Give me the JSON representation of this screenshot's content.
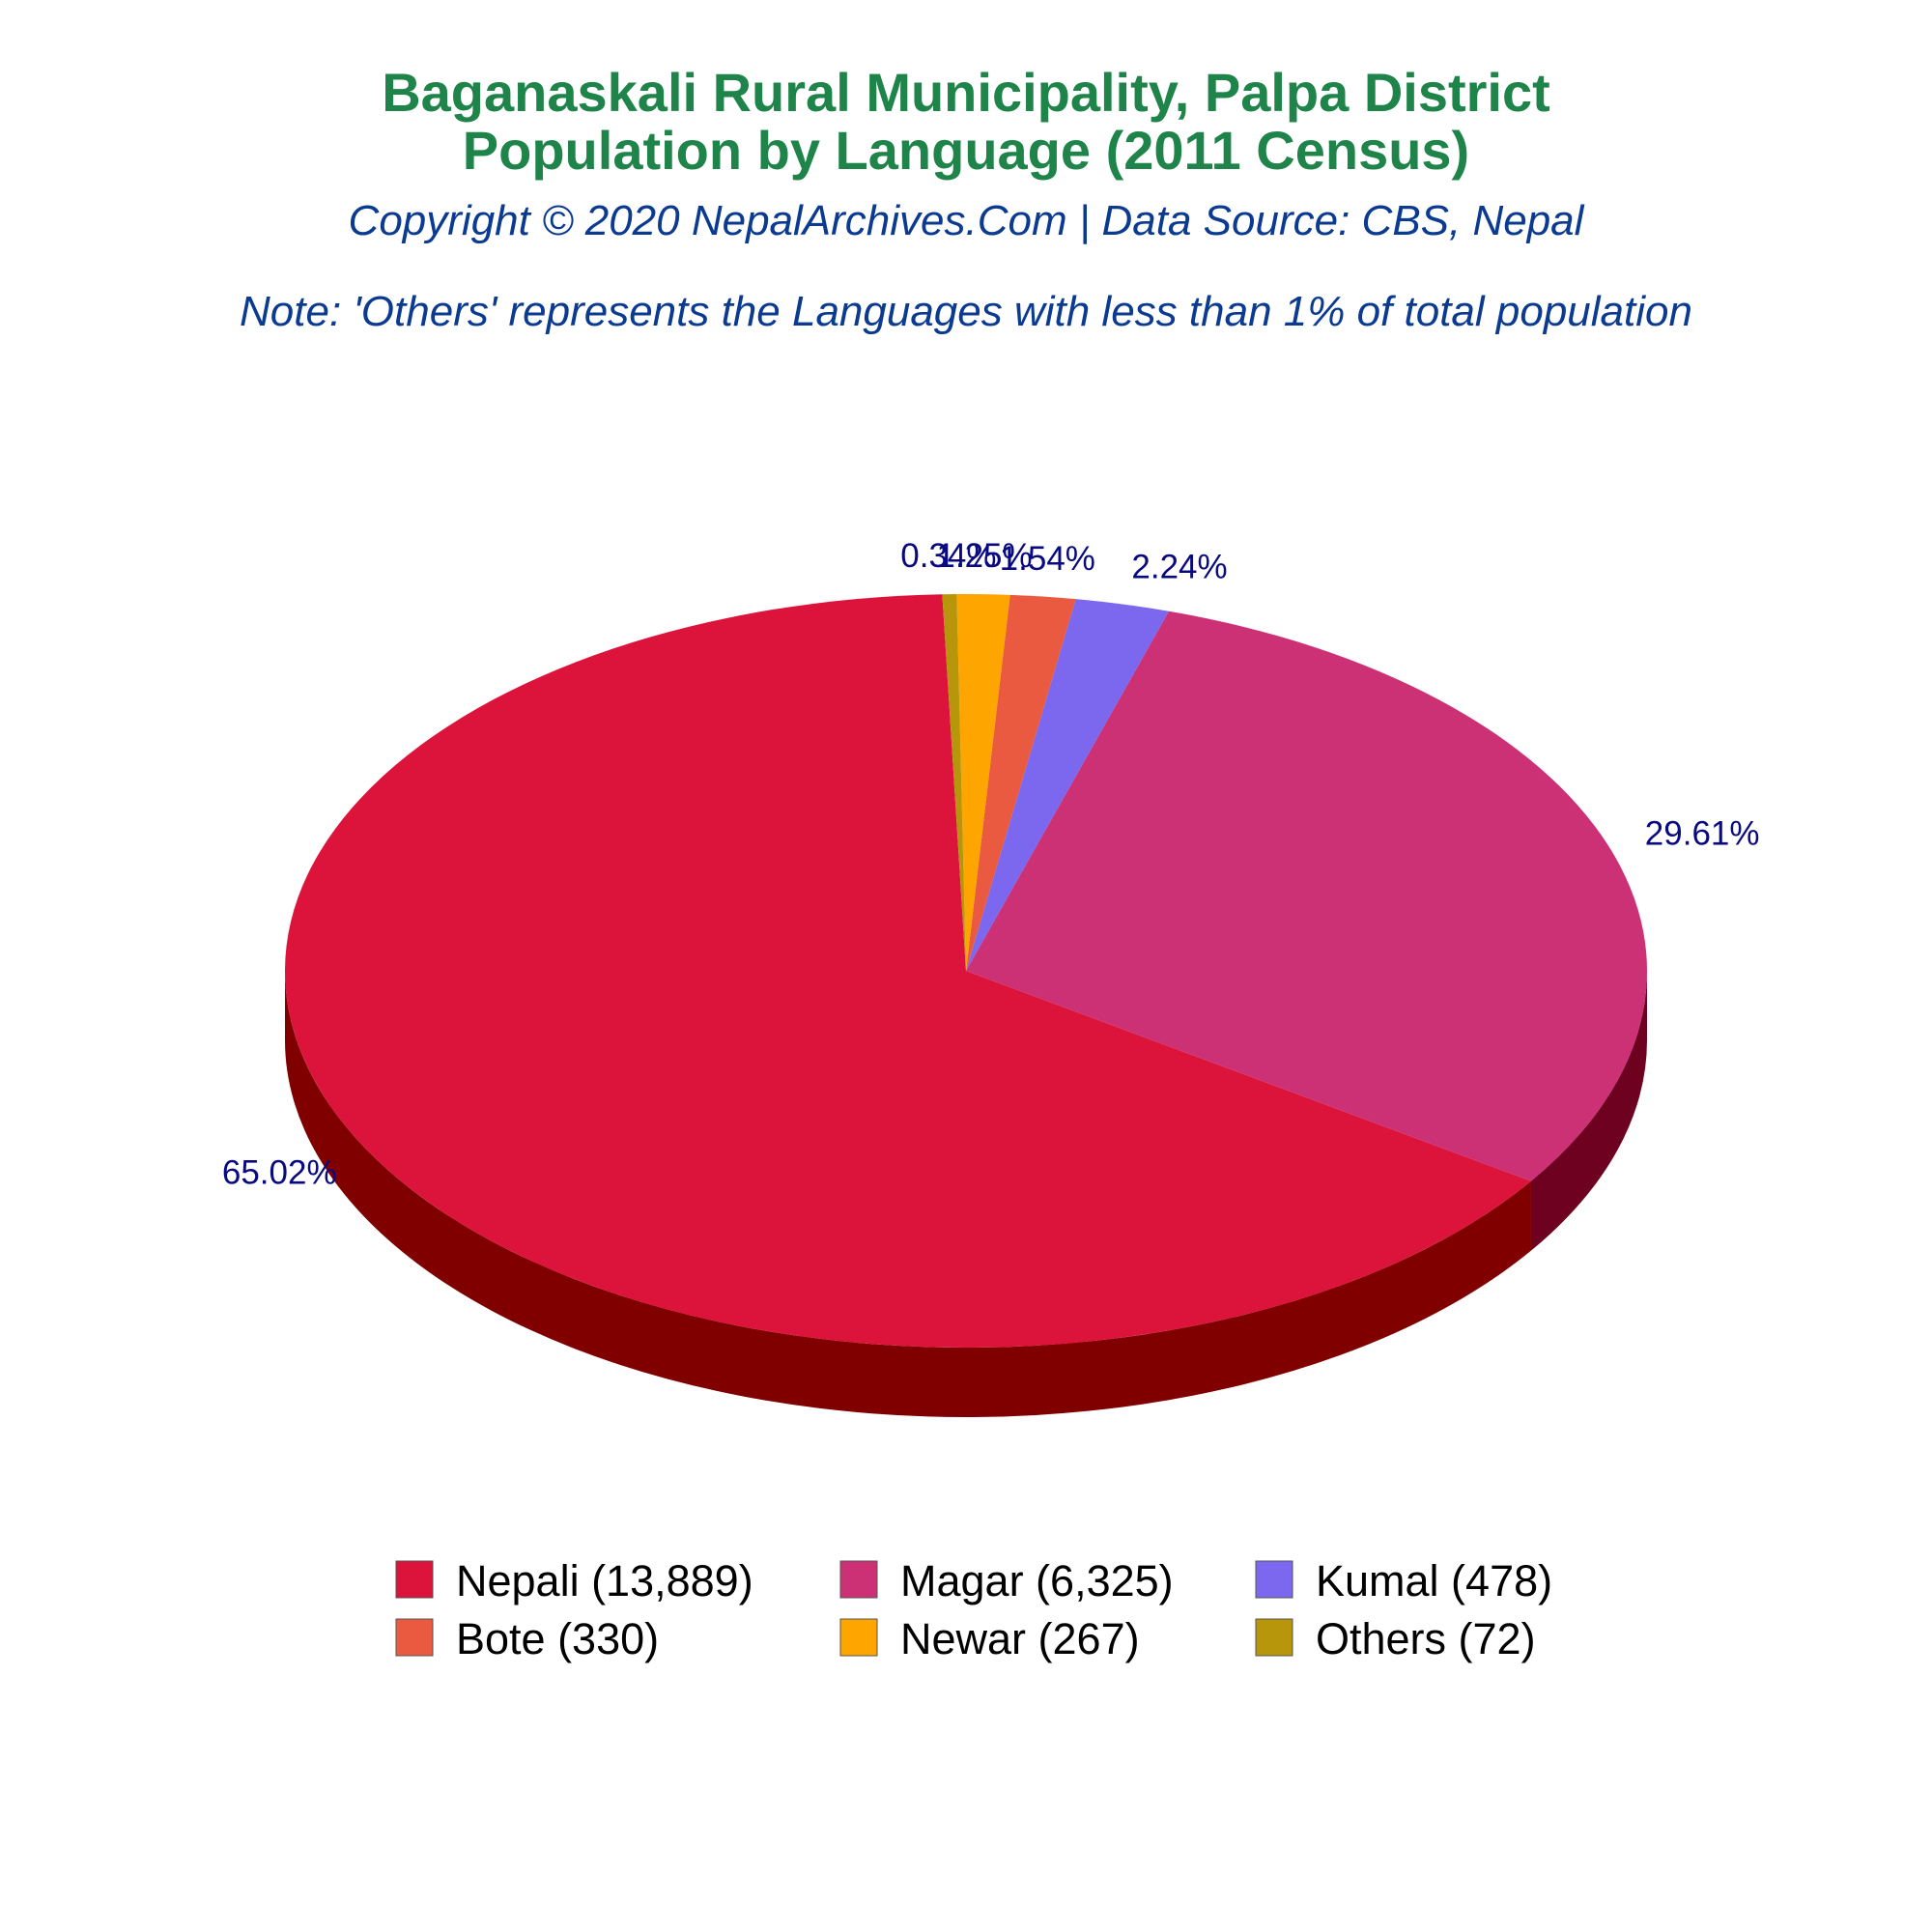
{
  "chart_data": {
    "type": "pie",
    "title_line1": "Baganaskali Rural Municipality, Palpa District",
    "title_line2": "Population by Language (2011 Census)",
    "subtitle": "Copyright © 2020 NepalArchives.Com | Data Source: CBS, Nepal",
    "note": "Note: 'Others' represents the Languages with less than 1% of total population",
    "slices": [
      {
        "name": "Nepali",
        "value": 13889,
        "percent_label": "65.02%",
        "legend_label": "Nepali (13,889)",
        "color": "#dc143c",
        "side_color": "#800000"
      },
      {
        "name": "Magar",
        "value": 6325,
        "percent_label": "29.61%",
        "legend_label": "Magar (6,325)",
        "color": "#cc3175",
        "side_color": "#6e0020"
      },
      {
        "name": "Kumal",
        "value": 478,
        "percent_label": "2.24%",
        "legend_label": "Kumal (478)",
        "color": "#7b68ee",
        "side_color": "#3a2f7a"
      },
      {
        "name": "Bote",
        "value": 330,
        "percent_label": "1.54%",
        "legend_label": "Bote (330)",
        "color": "#ea5a41",
        "side_color": "#7a2a1a"
      },
      {
        "name": "Newar",
        "value": 267,
        "percent_label": "1.25%",
        "legend_label": "Newar (267)",
        "color": "#ffa500",
        "side_color": "#805300"
      },
      {
        "name": "Others",
        "value": 72,
        "percent_label": "0.34%",
        "legend_label": "Others (72)",
        "color": "#b8960c",
        "side_color": "#5c4b06"
      }
    ],
    "legend_position": "bottom"
  }
}
